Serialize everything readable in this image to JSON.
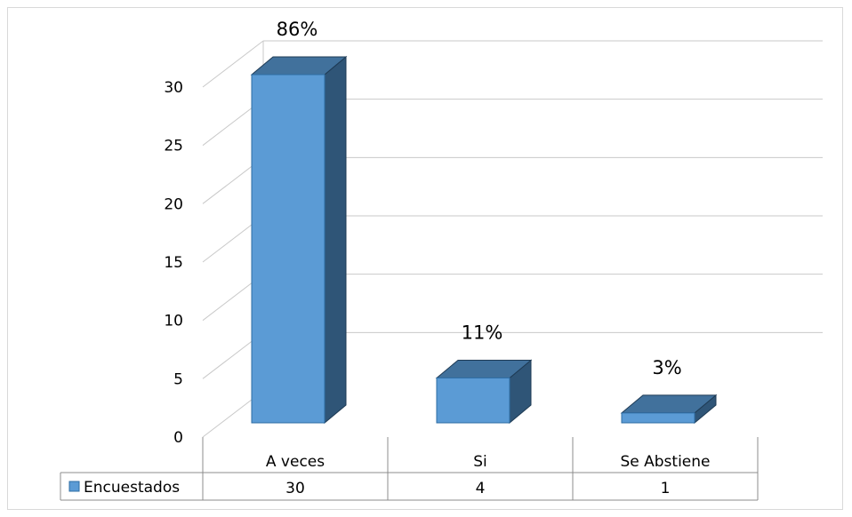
{
  "chart_data": {
    "type": "bar",
    "categories": [
      "A veces",
      "Si",
      "Se Abstiene"
    ],
    "series": [
      {
        "name": "Encuestados",
        "values": [
          30,
          4,
          1
        ]
      }
    ],
    "data_labels": [
      "86%",
      "11%",
      "3%"
    ],
    "yticks": [
      "0",
      "5",
      "10",
      "15",
      "20",
      "25",
      "30"
    ],
    "ylim": [
      0,
      30
    ],
    "grid": true,
    "data_table": true,
    "style": "3d-column",
    "colors": {
      "front": "#5b9bd5",
      "top": "#41719c",
      "side": "#2f5577",
      "grid": "#c9c9c9",
      "legend_key": "#5b9bd5"
    }
  }
}
